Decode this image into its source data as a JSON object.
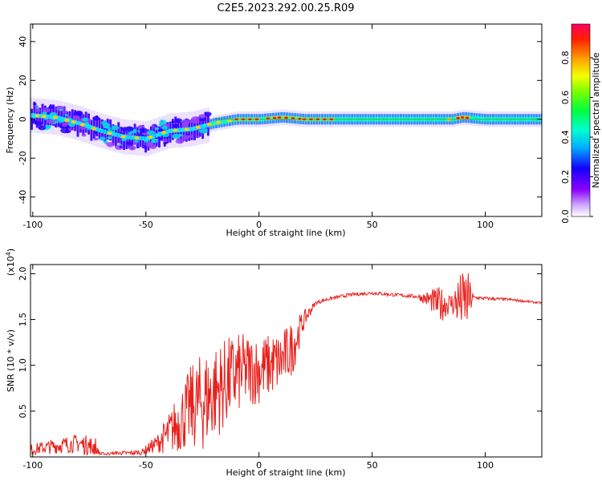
{
  "title": "C2E5.2023.292.00.25.R09",
  "colors": {
    "snr_line": "#e8201c",
    "axis": "#000000",
    "background": "#ffffff"
  },
  "chart_data": [
    {
      "type": "heatmap",
      "xlabel": "Height of straight line (km)",
      "ylabel": "Frequency (Hz)",
      "xlim": [
        -101,
        125
      ],
      "ylim": [
        -50,
        49
      ],
      "x_ticks": [
        -100,
        -50,
        0,
        50,
        100
      ],
      "y_ticks": [
        -40,
        -20,
        0,
        20,
        40
      ],
      "colorbar": {
        "label": "Normalized spectral amplitude",
        "range": [
          0,
          0.97
        ],
        "ticks": [
          0.0,
          0.2,
          0.4,
          0.6,
          0.8
        ],
        "colormap": "rainbow-violet-to-red"
      },
      "ridge": {
        "description_points": [
          [
            -100,
            2
          ],
          [
            -90,
            1
          ],
          [
            -80,
            -2
          ],
          [
            -70,
            -6
          ],
          [
            -60,
            -9
          ],
          [
            -50,
            -10
          ],
          [
            -40,
            -6
          ],
          [
            -30,
            -5
          ],
          [
            -20,
            -2
          ],
          [
            -10,
            0
          ],
          [
            0,
            0
          ],
          [
            10,
            1
          ],
          [
            20,
            0
          ],
          [
            50,
            0
          ],
          [
            85,
            0
          ],
          [
            90,
            1
          ],
          [
            100,
            0
          ],
          [
            125,
            0
          ]
        ],
        "width_hz": 3
      }
    },
    {
      "type": "line",
      "xlabel": "Height of straight line (km)",
      "ylabel": "SNR (10 * v/v)",
      "y_exponent_label": "(x10",
      "y_exponent_power": "4",
      "y_exponent_close": ")",
      "xlim": [
        -101,
        125
      ],
      "ylim": [
        0,
        2.1
      ],
      "x_ticks": [
        -100,
        -50,
        0,
        50,
        100
      ],
      "y_ticks": [
        0.5,
        1.0,
        1.5,
        2.0
      ],
      "y_tick_labels": [
        "0.5",
        "1.0",
        "1.5",
        "2.0"
      ],
      "series": [
        {
          "baseline": [
            [
              -101,
              0.08
            ],
            [
              -90,
              0.12
            ],
            [
              -80,
              0.15
            ],
            [
              -72,
              0.1
            ],
            [
              -70,
              0.03
            ],
            [
              -60,
              0.04
            ],
            [
              -52,
              0.05
            ],
            [
              -45,
              0.15
            ],
            [
              -40,
              0.25
            ],
            [
              -35,
              0.4
            ],
            [
              -30,
              0.55
            ],
            [
              -25,
              0.6
            ],
            [
              -20,
              0.7
            ],
            [
              -15,
              0.8
            ],
            [
              -10,
              0.9
            ],
            [
              -5,
              0.95
            ],
            [
              0,
              0.95
            ],
            [
              5,
              1.0
            ],
            [
              10,
              1.05
            ],
            [
              15,
              1.2
            ],
            [
              20,
              1.5
            ],
            [
              25,
              1.68
            ],
            [
              30,
              1.72
            ],
            [
              40,
              1.77
            ],
            [
              50,
              1.79
            ],
            [
              60,
              1.77
            ],
            [
              70,
              1.75
            ],
            [
              75,
              1.72
            ],
            [
              80,
              1.66
            ],
            [
              85,
              1.68
            ],
            [
              90,
              1.7
            ],
            [
              95,
              1.74
            ],
            [
              100,
              1.73
            ],
            [
              110,
              1.72
            ],
            [
              125,
              1.68
            ]
          ],
          "noise_envelope": [
            [
              -101,
              0.06
            ],
            [
              -72,
              0.12
            ],
            [
              -70,
              0.02
            ],
            [
              -52,
              0.03
            ],
            [
              -45,
              0.1
            ],
            [
              -35,
              0.35
            ],
            [
              -25,
              0.55
            ],
            [
              -15,
              0.5
            ],
            [
              -5,
              0.4
            ],
            [
              5,
              0.35
            ],
            [
              15,
              0.3
            ],
            [
              20,
              0.1
            ],
            [
              25,
              0.02
            ],
            [
              70,
              0.02
            ],
            [
              75,
              0.1
            ],
            [
              80,
              0.2
            ],
            [
              85,
              0.1
            ],
            [
              88,
              0.3
            ],
            [
              92,
              0.35
            ],
            [
              95,
              0.02
            ],
            [
              125,
              0.01
            ]
          ]
        }
      ]
    }
  ]
}
